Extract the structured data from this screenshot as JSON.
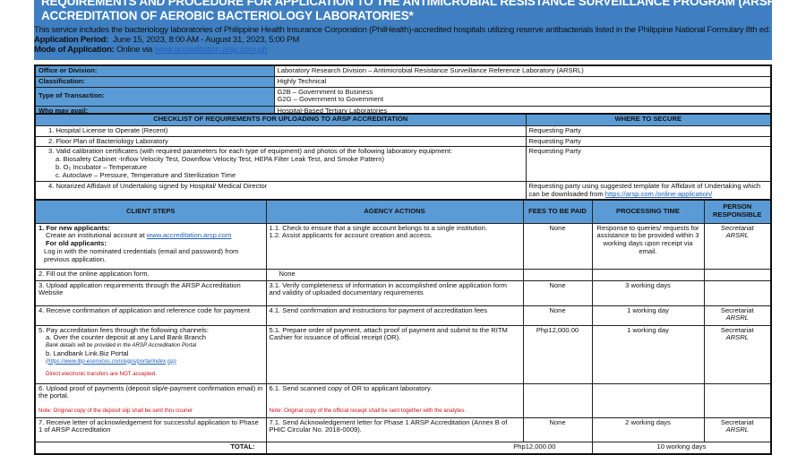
{
  "title": {
    "line1": "REQUIREMENTS AND PROCEDURE FOR APPLICATION TO THE ANTIMICROBIAL RESISTANCE SURVEILLANCE PROGRAM (ARSP)",
    "line2": "ACCREDITATION OF AEROBIC BACTERIOLOGY LABORATORIES*"
  },
  "intro": {
    "description": "This service includes the bacteriology laboratories of Philippine Health Insurance Corporation (PhilHealth)-accredited hospitals utilizing reserve antibacterials listed in the Philippine National Formulary 8th ed.",
    "period_label": "Application Period:",
    "period_value": "June 15, 2023, 8:00 AM - August 31, 2023, 5:00 PM",
    "mode_label": "Mode of Application:",
    "mode_value": "Online via",
    "mode_link": "www.accreditation.arsp.com.ph"
  },
  "info": {
    "office_label": "Office or Division:",
    "office_value": "Laboratory Research Division – Antimicrobial Resistance Surveillance Reference Laboratory (ARSRL)",
    "class_label": "Classification:",
    "class_value": "Highly Technical",
    "type_label": "Type of Transaction:",
    "type_value1": "G2B – Government to Business",
    "type_value2": "G2G – Government to Government",
    "who_label": "Who may avail:",
    "who_value": "Hospital-Based Tertiary Laboratories"
  },
  "checklist": {
    "header_req": "CHECKLIST OF REQUIREMENTS FOR UPLOADING TO ARSP ACCREDITATION",
    "header_where": "WHERE TO SECURE",
    "r1": "1. Hospital License to Operate (Recent)",
    "w1": "Requesting Party",
    "r2": "2. Floor Plan of Bacteriology Laboratory",
    "w2": "Requesting Party",
    "r3": "3. Valid calibration certificates (with required parameters for each type of equipment) and photos of the following laboratory equipment:",
    "r3a": "a. Biosafety Cabinet -Inflow Velocity Test, Downflow Velocity Test, HEPA Filter Leak Test, and Smoke Pattern)",
    "r3b": "b. O₂ Incubator –  Temperature",
    "r3c": "c. Autoclave – Pressure, Temperature and Sterilization Time",
    "w3": "Requesting Party",
    "r4": "4. Notarized Affidavit of Undertaking signed by Hospital/ Medical Director",
    "w4": "Requesting party using suggested template for Affidavit of Undertaking which can be downloaded from",
    "w4_link": "https://arsp.com./online-application/"
  },
  "steps": {
    "h_client": "CLIENT STEPS",
    "h_agency": "AGENCY ACTIONS",
    "h_fees": "FEES TO BE PAID",
    "h_time": "PROCESSING TIME",
    "h_person": "PERSON RESPONSIBLE",
    "s1_new": "1.   For new applicants:",
    "s1_create": "Create an institutional account at",
    "s1_link": "www.accreditation.arsp.com",
    "s1_old": "For old applicants:",
    "s1_login": "Log in with the nominated credentials (email and password) from previous application.",
    "a1_1": "1.1. Check to ensure that a single account belongs to a single institution.",
    "a1_2": "1.2. Assist applicants for account creation and access.",
    "f1": "None",
    "t1": "Response to queries/ requests for assistance to be provided within 3 working days upon receipt via email.",
    "p1a": "Secretariat",
    "p1b": "ARSRL",
    "s2": "2.   Fill out the online application form.",
    "a2": "None",
    "s3": "3.   Upload application requirements through the ARSP Accreditation Website",
    "a3": "3.1. Verify completeness of information in accomplished online application form and validity of uploaded documentary requirements",
    "f3": "None",
    "t3": "3 working days",
    "s4": "4.   Receive confirmation of application and reference code for payment",
    "a4": "4.1. Send confirmation and instructions for payment of accreditation fees",
    "f4": "None",
    "t4": "1 working day",
    "p4a": "Secretariat",
    "p4b": "ARSRL",
    "s5": "5.   Pay accreditation fees through the following channels:",
    "s5a": "a. Over the counter deposit at any Land Bank Branch",
    "s5a_note": "Bank details will be provided in the ARSP Accreditation Portal",
    "s5b": "b. Landbank Link.Biz Portal",
    "s5b_link": "(https://www.lbp-eservices.com/egps/portal/index.jsp)",
    "s5_warn": "Direct electronic transfers are NOT accepted.",
    "a5": "5.1. Prepare order of payment, attach proof of payment and submit to the RITM Cashier for issuance of official receipt (OR).",
    "f5": "Php12,000.00",
    "t5": "1 working day",
    "p5a": "Secretariat",
    "p5b": "ARSRL",
    "s6": "6.   Upload proof of payments (deposit slip/e-payment confirmation email) in the portal.",
    "s6_note": "Note: Original copy of the deposit slip shall be sent thru courier",
    "a6": "6.1. Send scanned copy of OR to applicant laboratory.",
    "a6_note": "Note: Original copy of the official receipt shall be sent together with the analytes.",
    "s7": "7.   Receive letter of acknowledgement for successful application to Phase 1 of ARSP Accreditation",
    "a7": "7.1. Send Acknowledgement letter for Phase 1 ARSP Accreditation (Annex B of PHIC Circular No. 2018-0009).",
    "f7": "None",
    "t7": "2 working days",
    "p7a": "Secretariat",
    "p7b": "ARSRL",
    "total_label": "TOTAL:",
    "total_fee": "Php12,000.00",
    "total_time": "10 working days"
  },
  "colors": {
    "header_blue": "#3f7fc1",
    "cell_blue": "#5b9bd5",
    "note_red": "#d01010",
    "link": "#1f5fbf"
  }
}
